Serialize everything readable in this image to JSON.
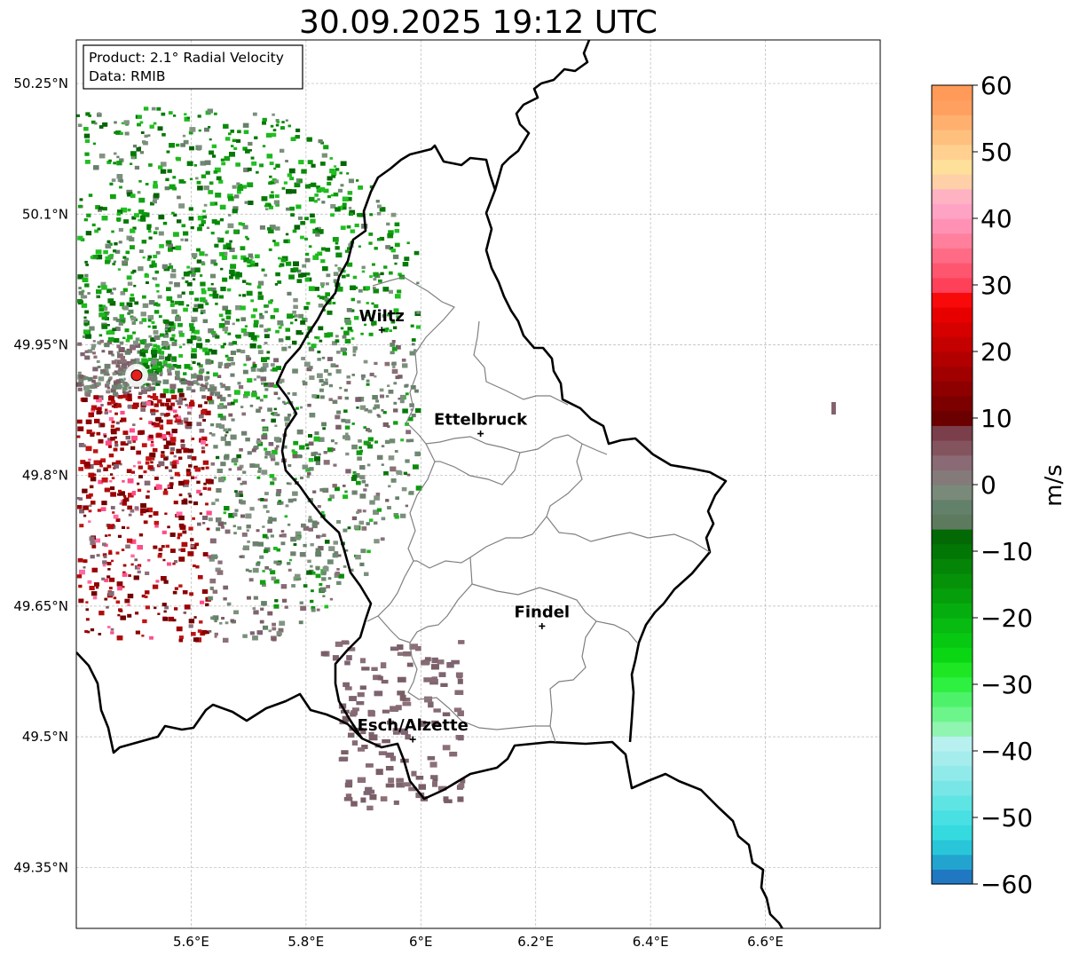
{
  "title": "30.09.2025 19:12 UTC",
  "info_box": {
    "product": "Product: 2.1° Radial Velocity",
    "data": "Data: RMIB"
  },
  "axes": {
    "lon_range": [
      5.4,
      6.8
    ],
    "lat_range": [
      49.28,
      50.3
    ],
    "lon_ticks": [
      {
        "value": 5.6,
        "label": "5.6°E"
      },
      {
        "value": 5.8,
        "label": "5.8°E"
      },
      {
        "value": 6.0,
        "label": "6°E"
      },
      {
        "value": 6.2,
        "label": "6.2°E"
      },
      {
        "value": 6.4,
        "label": "6.4°E"
      },
      {
        "value": 6.6,
        "label": "6.6°E"
      }
    ],
    "lat_ticks": [
      {
        "value": 50.25,
        "label": "50.25°N"
      },
      {
        "value": 50.1,
        "label": "50.1°N"
      },
      {
        "value": 49.95,
        "label": "49.95°N"
      },
      {
        "value": 49.8,
        "label": "49.8°N"
      },
      {
        "value": 49.65,
        "label": "49.65°N"
      },
      {
        "value": 49.5,
        "label": "49.5°N"
      },
      {
        "value": 49.35,
        "label": "49.35°N"
      }
    ]
  },
  "radar_site": {
    "lon": 5.505,
    "lat": 49.915,
    "color": "#e8201c"
  },
  "cities": [
    {
      "name": "Wiltz",
      "lon": 5.932,
      "lat": 49.967
    },
    {
      "name": "Ettelbruck",
      "lon": 6.104,
      "lat": 49.848
    },
    {
      "name": "Findel",
      "lon": 6.211,
      "lat": 49.627
    },
    {
      "name": "Esch/Alzette",
      "lon": 5.986,
      "lat": 49.497
    }
  ],
  "colorbar": {
    "label": "m/s",
    "min": -60,
    "max": 60,
    "ticks": [
      {
        "value": 60,
        "label": "60"
      },
      {
        "value": 50,
        "label": "50"
      },
      {
        "value": 40,
        "label": "40"
      },
      {
        "value": 30,
        "label": "30"
      },
      {
        "value": 20,
        "label": "20"
      },
      {
        "value": 10,
        "label": "10"
      },
      {
        "value": 0,
        "label": "0"
      },
      {
        "value": -10,
        "label": "−10"
      },
      {
        "value": -20,
        "label": "−20"
      },
      {
        "value": -30,
        "label": "−30"
      },
      {
        "value": -40,
        "label": "−40"
      },
      {
        "value": -50,
        "label": "−50"
      },
      {
        "value": -60,
        "label": "−60"
      }
    ],
    "colors": [
      "#1f78c1",
      "#22a4cf",
      "#29c6d9",
      "#35dadf",
      "#48e0e2",
      "#5fe4e4",
      "#78e6e6",
      "#90eaea",
      "#a5ecec",
      "#b8f0f0",
      "#8ff5b0",
      "#6cf58a",
      "#4df26a",
      "#2ef040",
      "#1ee623",
      "#0ad613",
      "#08c912",
      "#07bb10",
      "#06ad0e",
      "#069f0c",
      "#059209",
      "#048507",
      "#037705",
      "#036904",
      "#5e7a5e",
      "#63806a",
      "#7a8a7a",
      "#857a7a",
      "#8a6a74",
      "#84545e",
      "#7a3f4a",
      "#6b0000",
      "#7d0000",
      "#8e0000",
      "#a00000",
      "#b20000",
      "#c40000",
      "#d60000",
      "#e80000",
      "#f80a0a",
      "#ff4059",
      "#ff5670",
      "#ff6a85",
      "#ff7f9c",
      "#ff92b4",
      "#ffa3c5",
      "#ffb2c2",
      "#ffd0a8",
      "#ffe09a",
      "#ffd090",
      "#ffc07e",
      "#ffb06e",
      "#ffa060",
      "#ff9a58"
    ]
  }
}
